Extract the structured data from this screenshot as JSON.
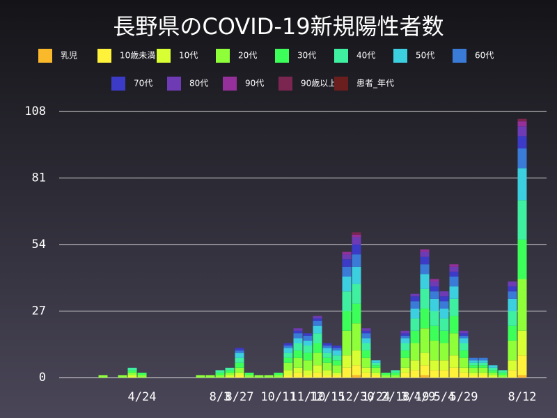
{
  "chart_data": {
    "type": "bar",
    "stacked": true,
    "title": "長野県のCOVID-19新規陽性者数",
    "categories": [
      null,
      null,
      null,
      null,
      null,
      null,
      null,
      null,
      "4/24",
      null,
      null,
      null,
      null,
      null,
      null,
      null,
      "8/3",
      null,
      "8/27",
      null,
      null,
      null,
      "10/11",
      null,
      null,
      "11/10",
      null,
      "12/15",
      null,
      null,
      "12/30",
      null,
      "1/24",
      null,
      "2/18",
      null,
      "3/19",
      "4/9",
      null,
      "5/4",
      null,
      "5/29",
      null,
      null,
      null,
      null,
      null,
      "8/12"
    ],
    "series": [
      {
        "name": "乳児",
        "color": "#f9b92a",
        "values": [
          0,
          0,
          0,
          0,
          0,
          0,
          0,
          0,
          0,
          0,
          0,
          0,
          0,
          0,
          0,
          0,
          0,
          0,
          0,
          0,
          0,
          0,
          0,
          0,
          0,
          0,
          0,
          0,
          0,
          0,
          1,
          0,
          0,
          0,
          0,
          0,
          0,
          1,
          0,
          0,
          0,
          0,
          0,
          0,
          0,
          0,
          0,
          1
        ]
      },
      {
        "name": "10歳未満",
        "color": "#fff23a",
        "values": [
          0,
          0,
          0,
          0,
          0,
          0,
          0,
          0,
          0,
          0,
          0,
          0,
          0,
          0,
          0,
          0,
          0,
          0,
          1,
          0,
          0,
          0,
          0,
          1,
          2,
          1,
          2,
          1,
          1,
          4,
          4,
          2,
          1,
          0,
          0,
          2,
          3,
          4,
          3,
          3,
          4,
          2,
          1,
          1,
          0,
          0,
          3,
          8
        ]
      },
      {
        "name": "10代",
        "color": "#d8ff33",
        "values": [
          0,
          0,
          0,
          0,
          0,
          0,
          0,
          1,
          0,
          0,
          0,
          0,
          0,
          0,
          0,
          0,
          0,
          1,
          1,
          0,
          0,
          0,
          0,
          2,
          2,
          2,
          3,
          2,
          1,
          5,
          6,
          2,
          1,
          0,
          0,
          2,
          4,
          5,
          4,
          4,
          5,
          2,
          1,
          1,
          1,
          0,
          4,
          10
        ]
      },
      {
        "name": "20代",
        "color": "#8fff3a",
        "values": [
          0,
          0,
          0,
          0,
          1,
          0,
          1,
          1,
          1,
          0,
          0,
          0,
          0,
          0,
          1,
          1,
          1,
          1,
          2,
          1,
          1,
          1,
          1,
          3,
          4,
          4,
          5,
          3,
          3,
          10,
          11,
          4,
          2,
          1,
          1,
          4,
          7,
          10,
          8,
          7,
          9,
          4,
          2,
          2,
          1,
          1,
          8,
          21
        ]
      },
      {
        "name": "30代",
        "color": "#3cff5a",
        "values": [
          0,
          0,
          0,
          0,
          0,
          0,
          0,
          1,
          1,
          0,
          0,
          0,
          0,
          0,
          0,
          0,
          1,
          1,
          2,
          1,
          0,
          0,
          1,
          2,
          3,
          3,
          4,
          2,
          2,
          8,
          8,
          3,
          1,
          1,
          1,
          3,
          5,
          8,
          6,
          5,
          7,
          3,
          1,
          1,
          1,
          1,
          6,
          16
        ]
      },
      {
        "name": "40代",
        "color": "#3ff0a0",
        "values": [
          0,
          0,
          0,
          0,
          0,
          0,
          0,
          1,
          0,
          0,
          0,
          0,
          0,
          0,
          0,
          0,
          1,
          1,
          2,
          0,
          0,
          0,
          0,
          2,
          3,
          3,
          4,
          2,
          2,
          8,
          8,
          3,
          1,
          0,
          1,
          3,
          5,
          8,
          6,
          5,
          7,
          3,
          1,
          1,
          1,
          1,
          6,
          16
        ]
      },
      {
        "name": "50代",
        "color": "#3ccfe0",
        "values": [
          0,
          0,
          0,
          0,
          0,
          0,
          0,
          0,
          0,
          0,
          0,
          0,
          0,
          0,
          0,
          0,
          0,
          0,
          2,
          0,
          0,
          0,
          0,
          2,
          2,
          2,
          3,
          2,
          2,
          6,
          7,
          2,
          1,
          0,
          0,
          2,
          4,
          6,
          5,
          4,
          5,
          2,
          1,
          1,
          1,
          0,
          5,
          13
        ]
      },
      {
        "name": "60代",
        "color": "#3a7bd8",
        "values": [
          0,
          0,
          0,
          0,
          0,
          0,
          0,
          0,
          0,
          0,
          0,
          0,
          0,
          0,
          0,
          0,
          0,
          0,
          1,
          0,
          0,
          0,
          0,
          1,
          2,
          2,
          2,
          1,
          1,
          4,
          5,
          2,
          0,
          0,
          0,
          1,
          3,
          4,
          3,
          3,
          4,
          1,
          1,
          1,
          0,
          0,
          3,
          8
        ]
      },
      {
        "name": "70代",
        "color": "#3b3bc8",
        "values": [
          0,
          0,
          0,
          0,
          0,
          0,
          0,
          0,
          0,
          0,
          0,
          0,
          0,
          0,
          0,
          0,
          0,
          0,
          1,
          0,
          0,
          0,
          0,
          1,
          1,
          1,
          1,
          1,
          1,
          3,
          4,
          1,
          0,
          0,
          0,
          1,
          2,
          3,
          2,
          2,
          2,
          1,
          0,
          0,
          0,
          0,
          2,
          5
        ]
      },
      {
        "name": "80代",
        "color": "#6e3bb5",
        "values": [
          0,
          0,
          0,
          0,
          0,
          0,
          0,
          0,
          0,
          0,
          0,
          0,
          0,
          0,
          0,
          0,
          0,
          0,
          0,
          0,
          0,
          0,
          0,
          0,
          1,
          0,
          1,
          0,
          0,
          2,
          3,
          1,
          0,
          0,
          0,
          1,
          1,
          2,
          2,
          2,
          2,
          1,
          0,
          0,
          0,
          0,
          2,
          4
        ]
      },
      {
        "name": "90代",
        "color": "#95309a",
        "values": [
          0,
          0,
          0,
          0,
          0,
          0,
          0,
          0,
          0,
          0,
          0,
          0,
          0,
          0,
          0,
          0,
          0,
          0,
          0,
          0,
          0,
          0,
          0,
          0,
          0,
          0,
          0,
          0,
          0,
          1,
          1,
          0,
          0,
          0,
          0,
          0,
          0,
          1,
          1,
          0,
          1,
          0,
          0,
          0,
          0,
          0,
          0,
          2
        ]
      },
      {
        "name": "90歳以上",
        "color": "#7a2650",
        "values": [
          0,
          0,
          0,
          0,
          0,
          0,
          0,
          0,
          0,
          0,
          0,
          0,
          0,
          0,
          0,
          0,
          0,
          0,
          0,
          0,
          0,
          0,
          0,
          0,
          0,
          0,
          0,
          0,
          0,
          0,
          1,
          0,
          0,
          0,
          0,
          0,
          0,
          0,
          0,
          0,
          0,
          0,
          0,
          0,
          0,
          0,
          0,
          1
        ]
      },
      {
        "name": "患者_年代",
        "color": "#6a1e1e",
        "values": [
          0,
          0,
          0,
          0,
          0,
          0,
          0,
          0,
          0,
          0,
          0,
          0,
          0,
          0,
          0,
          0,
          0,
          0,
          0,
          0,
          0,
          0,
          0,
          0,
          0,
          0,
          0,
          0,
          0,
          0,
          0,
          0,
          0,
          0,
          0,
          0,
          0,
          0,
          0,
          0,
          0,
          0,
          0,
          0,
          0,
          0,
          0,
          0
        ]
      }
    ],
    "ylim": [
      0,
      108
    ],
    "yticks": [
      0,
      27,
      54,
      81,
      108
    ],
    "grid": true
  }
}
